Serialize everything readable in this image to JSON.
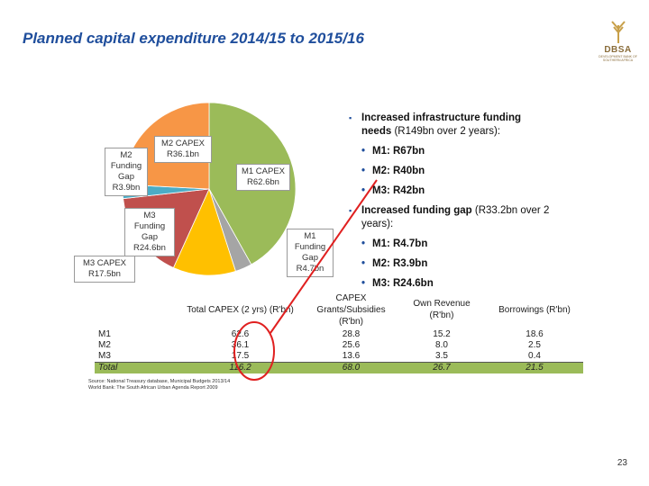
{
  "title": "Planned capital expenditure 2014/15 to 2015/16",
  "logo": {
    "name": "DBSA",
    "subtitle": "DEVELOPMENT BANK OF SOUTHERN AFRICA"
  },
  "chart_data": {
    "type": "pie",
    "categories": [
      "M1 CAPEX",
      "M1 Funding Gap",
      "M3 CAPEX",
      "M3 Funding Gap",
      "M2 Funding Gap",
      "M2 CAPEX"
    ],
    "values": [
      62.6,
      4.7,
      17.5,
      24.6,
      3.9,
      36.1
    ],
    "value_labels": [
      "R62.6bn",
      "R4.7bn",
      "R17.5bn",
      "R24.6bn",
      "R3.9bn",
      "R36.1bn"
    ],
    "colors": [
      "#9bbb59",
      "#a5a5a5",
      "#ffc000",
      "#c0504d",
      "#4bacc6",
      "#f79646"
    ]
  },
  "bullets": [
    {
      "text": "Increased infrastructure funding needs",
      "detail": "(R149bn over 2 years):",
      "items": [
        "M1: R67bn",
        "M2: R40bn",
        "M3: R42bn"
      ]
    },
    {
      "text": "Increased funding gap",
      "detail": "(R33.2bn over 2 years):",
      "items": [
        "M1: R4.7bn",
        "M2: R3.9bn",
        "M3: R24.6bn"
      ]
    }
  ],
  "table": {
    "header": [
      "Total CAPEX (2 yrs) (R'bn)",
      "CAPEX Grants/Subsidies (R'bn)",
      "Own Revenue (R'bn)",
      "Borrowings (R'bn)"
    ],
    "rows": [
      [
        "M1",
        "62.6",
        "28.8",
        "15.2",
        "18.6"
      ],
      [
        "M2",
        "36.1",
        "25.6",
        "8.0",
        "2.5"
      ],
      [
        "M3",
        "17.5",
        "13.6",
        "3.5",
        "0.4"
      ],
      [
        "Total",
        "116.2",
        "68.0",
        "26.7",
        "21.5"
      ]
    ]
  },
  "source": [
    "Source: National Treasury database, Municipal Budgets 2013/14",
    "World Bank: The South African Urban Agenda Report 2009"
  ],
  "page_number": "23"
}
